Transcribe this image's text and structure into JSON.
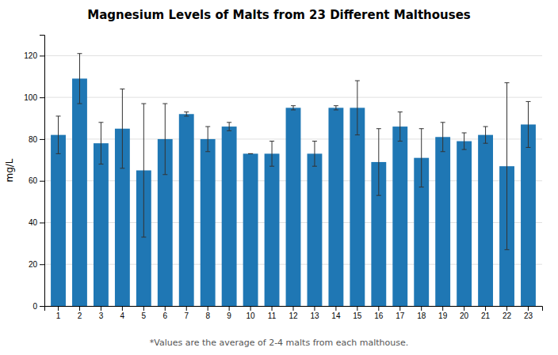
{
  "chart_data": {
    "type": "bar",
    "title": "Magnesium Levels of Malts from 23 Different Malthouses",
    "ylabel": "mg/L",
    "footnote": "*Values are the average of 2-4 malts from each malthouse.",
    "categories": [
      1,
      2,
      3,
      4,
      5,
      6,
      7,
      8,
      9,
      10,
      11,
      12,
      13,
      14,
      15,
      16,
      17,
      18,
      19,
      20,
      21,
      22,
      23
    ],
    "values": [
      82,
      109,
      78,
      85,
      65,
      80,
      92,
      80,
      86,
      73,
      73,
      95,
      73,
      95,
      95,
      69,
      86,
      71,
      81,
      79,
      82,
      67,
      87
    ],
    "errors_upper": [
      9,
      12,
      10,
      19,
      32,
      17,
      1,
      6,
      2,
      0,
      6,
      1,
      6,
      1,
      13,
      16,
      7,
      14,
      7,
      4,
      4,
      40,
      11
    ],
    "errors_lower": [
      9,
      12,
      10,
      19,
      32,
      17,
      1,
      6,
      2,
      0,
      6,
      1,
      6,
      1,
      13,
      16,
      7,
      14,
      7,
      4,
      4,
      40,
      11
    ],
    "ylim": [
      0,
      130
    ],
    "yticks": [
      0,
      20,
      40,
      60,
      80,
      100,
      120
    ],
    "grid": true
  }
}
